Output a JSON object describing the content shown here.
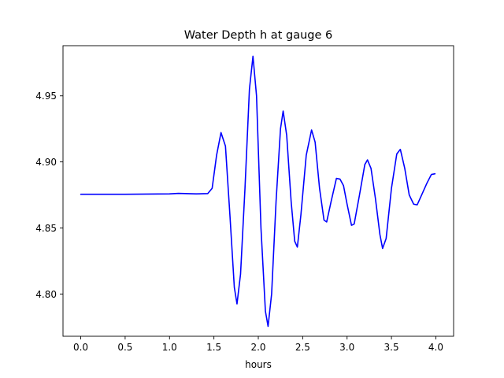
{
  "chart_data": {
    "type": "line",
    "title": "Water Depth h at gauge 6",
    "xlabel": "hours",
    "ylabel": "",
    "xlim": [
      -0.2,
      4.2
    ],
    "ylim": [
      4.768,
      4.988
    ],
    "xticks": [
      0.0,
      0.5,
      1.0,
      1.5,
      2.0,
      2.5,
      3.0,
      3.5,
      4.0
    ],
    "xtick_labels": [
      "0.0",
      "0.5",
      "1.0",
      "1.5",
      "2.0",
      "2.5",
      "3.0",
      "3.5",
      "4.0"
    ],
    "yticks": [
      4.8,
      4.85,
      4.9,
      4.95
    ],
    "ytick_labels": [
      "4.80",
      "4.85",
      "4.90",
      "4.95"
    ],
    "grid": false,
    "series": [
      {
        "color": "#0000ff",
        "points": [
          [
            0.0,
            4.8755
          ],
          [
            0.5,
            4.8755
          ],
          [
            1.0,
            4.8758
          ],
          [
            1.1,
            4.8762
          ],
          [
            1.3,
            4.8758
          ],
          [
            1.43,
            4.876
          ],
          [
            1.48,
            4.88
          ],
          [
            1.53,
            4.905
          ],
          [
            1.58,
            4.9222
          ],
          [
            1.63,
            4.912
          ],
          [
            1.68,
            4.86
          ],
          [
            1.73,
            4.805
          ],
          [
            1.76,
            4.7925
          ],
          [
            1.8,
            4.815
          ],
          [
            1.85,
            4.88
          ],
          [
            1.9,
            4.955
          ],
          [
            1.94,
            4.98
          ],
          [
            1.98,
            4.95
          ],
          [
            2.03,
            4.85
          ],
          [
            2.08,
            4.787
          ],
          [
            2.11,
            4.7755
          ],
          [
            2.15,
            4.8
          ],
          [
            2.2,
            4.87
          ],
          [
            2.25,
            4.925
          ],
          [
            2.28,
            4.9385
          ],
          [
            2.32,
            4.92
          ],
          [
            2.37,
            4.87
          ],
          [
            2.41,
            4.84
          ],
          [
            2.44,
            4.8355
          ],
          [
            2.48,
            4.86
          ],
          [
            2.54,
            4.905
          ],
          [
            2.6,
            4.9242
          ],
          [
            2.64,
            4.915
          ],
          [
            2.69,
            4.88
          ],
          [
            2.74,
            4.856
          ],
          [
            2.77,
            4.8545
          ],
          [
            2.82,
            4.87
          ],
          [
            2.88,
            4.8875
          ],
          [
            2.92,
            4.887
          ],
          [
            2.96,
            4.882
          ],
          [
            3.0,
            4.868
          ],
          [
            3.05,
            4.852
          ],
          [
            3.08,
            4.853
          ],
          [
            3.14,
            4.875
          ],
          [
            3.2,
            4.898
          ],
          [
            3.23,
            4.9015
          ],
          [
            3.27,
            4.895
          ],
          [
            3.32,
            4.872
          ],
          [
            3.37,
            4.845
          ],
          [
            3.4,
            4.8345
          ],
          [
            3.44,
            4.842
          ],
          [
            3.5,
            4.88
          ],
          [
            3.56,
            4.906
          ],
          [
            3.6,
            4.9095
          ],
          [
            3.65,
            4.895
          ],
          [
            3.7,
            4.875
          ],
          [
            3.75,
            4.868
          ],
          [
            3.79,
            4.8675
          ],
          [
            3.84,
            4.875
          ],
          [
            3.9,
            4.884
          ],
          [
            3.95,
            4.8905
          ],
          [
            3.99,
            4.891
          ]
        ]
      }
    ]
  }
}
